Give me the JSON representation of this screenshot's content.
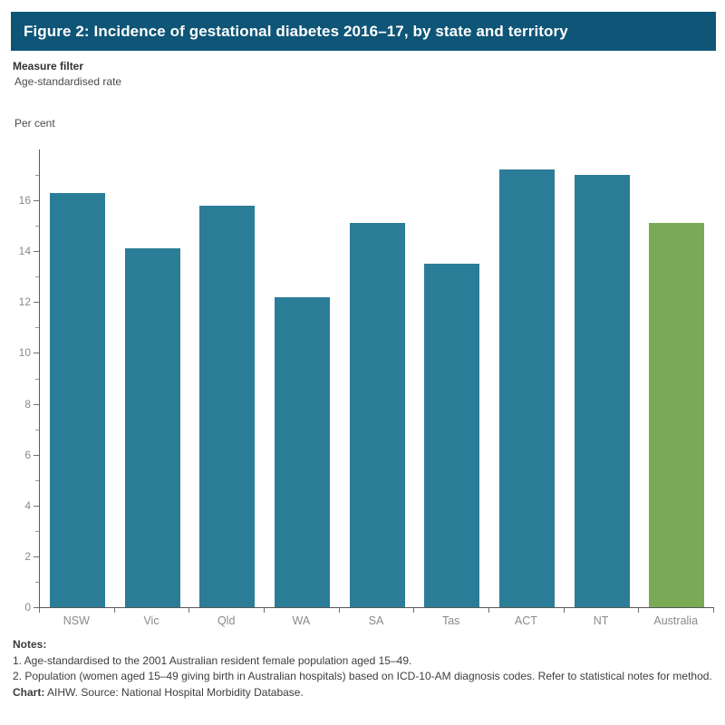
{
  "header": {
    "title": "Figure 2: Incidence of gestational diabetes 2016–17, by state and territory",
    "background_color": "#0e5577",
    "text_color": "#ffffff"
  },
  "filter": {
    "label": "Measure filter",
    "value": "Age-standardised rate"
  },
  "chart_data": {
    "type": "bar",
    "title": "Figure 2: Incidence of gestational diabetes 2016–17, by state and territory",
    "xlabel": "",
    "ylabel": "Per cent",
    "categories": [
      "NSW",
      "Vic",
      "Qld",
      "WA",
      "SA",
      "Tas",
      "ACT",
      "NT",
      "Australia"
    ],
    "values": [
      16.3,
      14.1,
      15.8,
      12.2,
      15.1,
      13.5,
      17.2,
      17.0,
      15.1
    ],
    "colors": [
      "#2b7d97",
      "#2b7d97",
      "#2b7d97",
      "#2b7d97",
      "#2b7d97",
      "#2b7d97",
      "#2b7d97",
      "#2b7d97",
      "#7aaa55"
    ],
    "highlight_category": "Australia",
    "bar_color_default": "#2b7d97",
    "bar_color_highlight": "#7aaa55",
    "ylim": [
      0,
      18
    ],
    "yticks": [
      0,
      2,
      4,
      6,
      8,
      10,
      12,
      14,
      16
    ],
    "yticks_minor": [
      1,
      3,
      5,
      7,
      9,
      11,
      13,
      15,
      17
    ],
    "grid": false,
    "legend": null
  },
  "notes": {
    "heading": "Notes:",
    "items": [
      "1. Age-standardised to the 2001 Australian resident female population aged 15–49.",
      "2. Population (women aged 15–49 giving birth in Australian hospitals) based on ICD-10-AM diagnosis codes. Refer to statistical notes for method."
    ],
    "source_bold": "Chart:",
    "source_rest": " AIHW. Source: National Hospital Morbidity Database."
  }
}
